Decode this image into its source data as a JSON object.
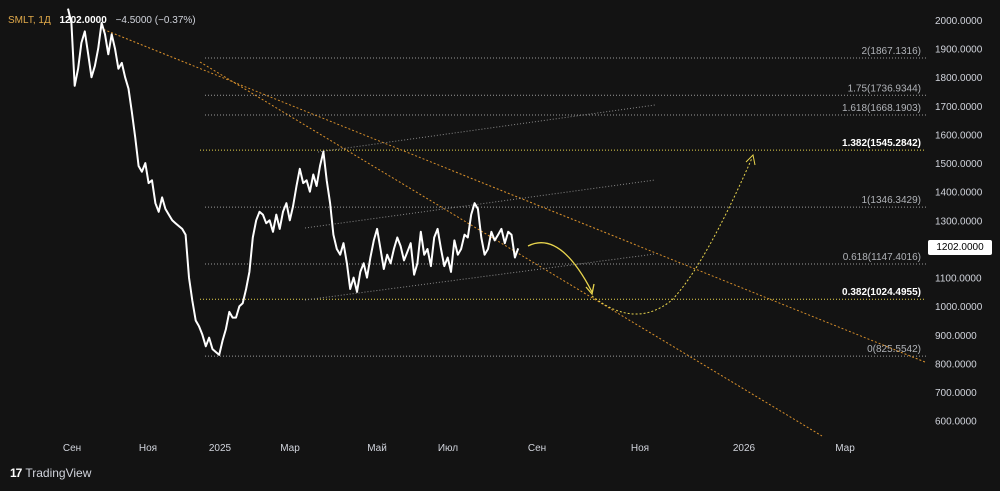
{
  "header": {
    "symbol": "SMLT, 1Д",
    "last": "1202.0000",
    "change": "−4.5000 (−0.37%)"
  },
  "brand": {
    "logo": "17",
    "name": "TradingView"
  },
  "price_label": "1202.0000",
  "colors": {
    "background": "#131313",
    "price_line": "#ffffff",
    "fib_line": "#9a9a9a",
    "highlight": "#e8d44d",
    "trendline": "#d9902b",
    "channel": "#8a8a8a",
    "axis_text": "#d1d4dc"
  },
  "chart_data": {
    "type": "line",
    "x_axis_labels": [
      "Сен",
      "Ноя",
      "2025",
      "Мар",
      "Май",
      "Июл",
      "Сен",
      "Ноя",
      "2026",
      "Мар"
    ],
    "y_axis_labels": [
      "2000.0000",
      "1900.0000",
      "1800.0000",
      "1700.0000",
      "1600.0000",
      "1500.0000",
      "1400.0000",
      "1300.0000",
      "1200.0000",
      "1100.0000",
      "1000.0000",
      "900.0000",
      "800.0000",
      "700.0000",
      "600.0000"
    ],
    "ylim": [
      530,
      2040
    ],
    "series": [
      {
        "values": [
          [
            0,
            2040
          ],
          [
            1,
            1990
          ],
          [
            2,
            1770
          ],
          [
            3,
            1830
          ],
          [
            4,
            1920
          ],
          [
            5,
            1960
          ],
          [
            6,
            1880
          ],
          [
            7,
            1800
          ],
          [
            8,
            1840
          ],
          [
            9,
            1900
          ],
          [
            10,
            1990
          ],
          [
            11,
            1950
          ],
          [
            12,
            1880
          ],
          [
            13,
            1950
          ],
          [
            14,
            1900
          ],
          [
            15,
            1830
          ],
          [
            16,
            1850
          ],
          [
            17,
            1800
          ],
          [
            18,
            1760
          ],
          [
            19,
            1680
          ],
          [
            20,
            1590
          ],
          [
            21,
            1490
          ],
          [
            22,
            1470
          ],
          [
            23,
            1500
          ],
          [
            24,
            1430
          ],
          [
            25,
            1440
          ],
          [
            26,
            1360
          ],
          [
            27,
            1330
          ],
          [
            28,
            1380
          ],
          [
            29,
            1340
          ],
          [
            30,
            1320
          ],
          [
            31,
            1300
          ],
          [
            32,
            1290
          ],
          [
            33,
            1280
          ],
          [
            34,
            1270
          ],
          [
            35,
            1250
          ],
          [
            36,
            1100
          ],
          [
            37,
            1020
          ],
          [
            38,
            950
          ],
          [
            39,
            930
          ],
          [
            40,
            900
          ],
          [
            41,
            860
          ],
          [
            42,
            890
          ],
          [
            43,
            850
          ],
          [
            44,
            840
          ],
          [
            45,
            830
          ],
          [
            46,
            880
          ],
          [
            47,
            920
          ],
          [
            48,
            980
          ],
          [
            49,
            960
          ],
          [
            50,
            960
          ],
          [
            51,
            1000
          ],
          [
            52,
            1010
          ],
          [
            53,
            1060
          ],
          [
            54,
            1120
          ],
          [
            55,
            1240
          ],
          [
            56,
            1300
          ],
          [
            57,
            1330
          ],
          [
            58,
            1320
          ],
          [
            59,
            1290
          ],
          [
            60,
            1300
          ],
          [
            61,
            1260
          ],
          [
            62,
            1320
          ],
          [
            63,
            1270
          ],
          [
            64,
            1330
          ],
          [
            65,
            1360
          ],
          [
            66,
            1300
          ],
          [
            67,
            1350
          ],
          [
            68,
            1420
          ],
          [
            69,
            1480
          ],
          [
            70,
            1430
          ],
          [
            71,
            1440
          ],
          [
            72,
            1400
          ],
          [
            73,
            1460
          ],
          [
            74,
            1420
          ],
          [
            75,
            1490
          ],
          [
            76,
            1540
          ],
          [
            77,
            1440
          ],
          [
            78,
            1360
          ],
          [
            79,
            1250
          ],
          [
            80,
            1200
          ],
          [
            81,
            1180
          ],
          [
            82,
            1220
          ],
          [
            83,
            1150
          ],
          [
            84,
            1060
          ],
          [
            85,
            1100
          ],
          [
            86,
            1050
          ],
          [
            87,
            1120
          ],
          [
            88,
            1150
          ],
          [
            89,
            1100
          ],
          [
            90,
            1170
          ],
          [
            91,
            1230
          ],
          [
            92,
            1270
          ],
          [
            93,
            1200
          ],
          [
            94,
            1130
          ],
          [
            95,
            1180
          ],
          [
            96,
            1150
          ],
          [
            97,
            1200
          ],
          [
            98,
            1240
          ],
          [
            99,
            1210
          ],
          [
            100,
            1160
          ],
          [
            101,
            1190
          ],
          [
            102,
            1220
          ],
          [
            103,
            1110
          ],
          [
            104,
            1150
          ],
          [
            105,
            1260
          ],
          [
            106,
            1180
          ],
          [
            107,
            1200
          ],
          [
            108,
            1140
          ],
          [
            109,
            1240
          ],
          [
            110,
            1270
          ],
          [
            111,
            1200
          ],
          [
            112,
            1140
          ],
          [
            113,
            1170
          ],
          [
            114,
            1120
          ],
          [
            115,
            1230
          ],
          [
            116,
            1180
          ],
          [
            117,
            1200
          ],
          [
            118,
            1250
          ],
          [
            119,
            1240
          ],
          [
            120,
            1320
          ],
          [
            121,
            1360
          ],
          [
            122,
            1340
          ],
          [
            123,
            1240
          ],
          [
            124,
            1180
          ],
          [
            125,
            1200
          ],
          [
            126,
            1260
          ],
          [
            127,
            1230
          ],
          [
            128,
            1250
          ],
          [
            129,
            1270
          ],
          [
            130,
            1220
          ],
          [
            131,
            1260
          ],
          [
            132,
            1250
          ],
          [
            133,
            1170
          ],
          [
            134,
            1202
          ]
        ]
      }
    ],
    "fib_levels": [
      {
        "label": "2(1867.1316)",
        "value": 1867.1316,
        "highlight": false
      },
      {
        "label": "1.75(1736.9344)",
        "value": 1736.9344,
        "highlight": false
      },
      {
        "label": "1.618(1668.1903)",
        "value": 1668.1903,
        "highlight": false
      },
      {
        "label": "1.382(1545.2842)",
        "value": 1545.2842,
        "highlight": true
      },
      {
        "label": "1(1346.3429)",
        "value": 1346.3429,
        "highlight": false
      },
      {
        "label": "0.618(1147.4016)",
        "value": 1147.4016,
        "highlight": false
      },
      {
        "label": "0.382(1024.4955)",
        "value": 1024.4955,
        "highlight": true
      },
      {
        "label": "0(825.5542)",
        "value": 825.5542,
        "highlight": false
      }
    ],
    "grid": false
  }
}
